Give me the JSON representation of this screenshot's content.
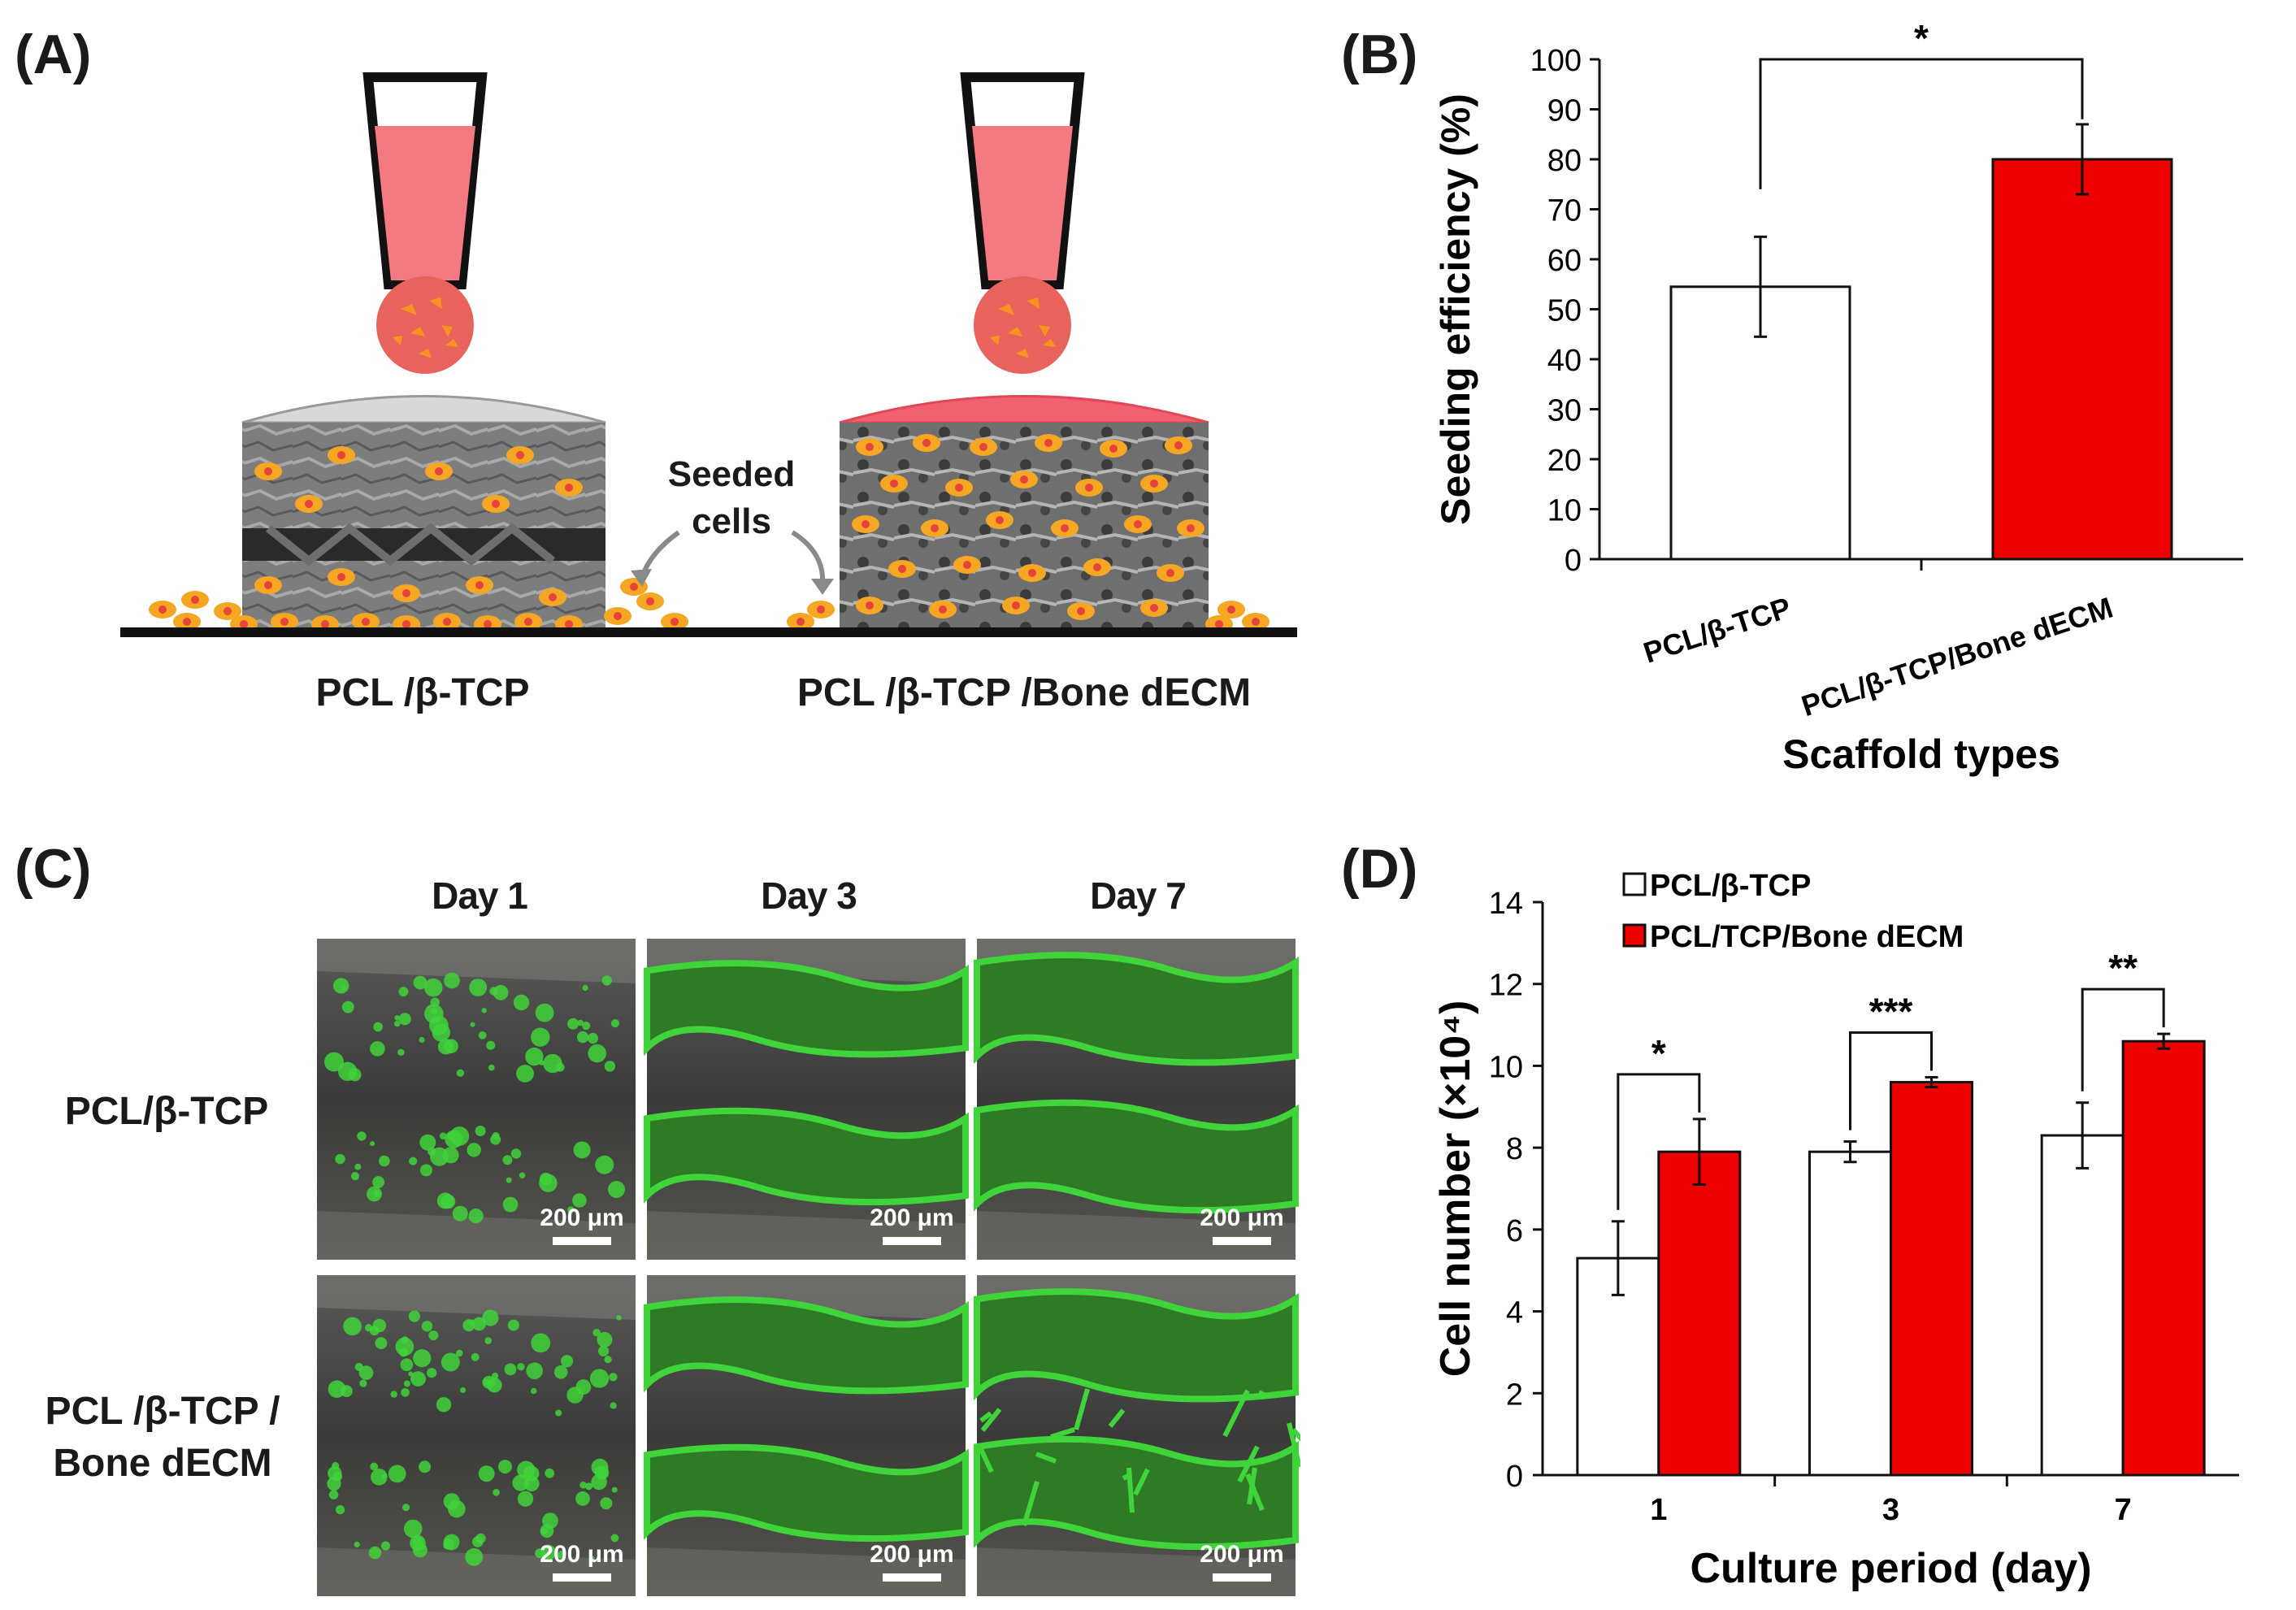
{
  "panel_a": {
    "label": "(A)",
    "seeded_cells_line1": "Seeded",
    "seeded_cells_line2": "cells",
    "left_caption": "PCL /β-TCP",
    "right_caption": "PCL /β-TCP /Bone dECM",
    "colors": {
      "medium": "#f47a82",
      "cell_drop": "#e8635b",
      "cell": "#f7931e",
      "ecm_cap": "#f06070",
      "pcl_cap": "#d8d8d8"
    }
  },
  "panel_b": {
    "label": "(B)",
    "significance": "*"
  },
  "panel_c": {
    "label": "(C)",
    "col_headers": [
      "Day 1",
      "Day 3",
      "Day 7"
    ],
    "row_labels": [
      [
        "PCL/β-TCP"
      ],
      [
        "PCL /β-TCP /",
        "Bone dECM"
      ]
    ],
    "scale_bar": "200 μm",
    "colors": {
      "fluorescence": "#3fd43a"
    }
  },
  "panel_d": {
    "label": "(D)",
    "legend": [
      "PCL/β-TCP",
      "PCL/TCP/Bone dECM"
    ],
    "significance": [
      "*",
      "***",
      "**"
    ]
  },
  "chart_data": [
    {
      "type": "bar",
      "panel": "B",
      "categories": [
        "PCL/β-TCP",
        "PCL/β-TCP/Bone dECM"
      ],
      "values": [
        54.5,
        80
      ],
      "errors": [
        10,
        7
      ],
      "colors": [
        "#ffffff",
        "#ee0000"
      ],
      "xlabel": "Scaffold types",
      "ylabel": "Seeding efficiency (%)",
      "ylim": [
        0,
        100
      ],
      "yticks": [
        0,
        10,
        20,
        30,
        40,
        50,
        60,
        70,
        80,
        90,
        100
      ],
      "grid": false
    },
    {
      "type": "bar",
      "panel": "D",
      "categories": [
        "1",
        "3",
        "7"
      ],
      "series": [
        {
          "name": "PCL/β-TCP",
          "values": [
            5.3,
            7.9,
            8.3
          ],
          "errors": [
            0.9,
            0.25,
            0.8
          ],
          "color": "#ffffff"
        },
        {
          "name": "PCL/TCP/Bone dECM",
          "values": [
            7.9,
            9.6,
            10.6
          ],
          "errors": [
            0.8,
            0.12,
            0.18
          ],
          "color": "#ee0000"
        }
      ],
      "xlabel": "Culture period (day)",
      "ylabel": "Cell number (×10⁴)",
      "ylim": [
        0,
        14
      ],
      "yticks": [
        0,
        2,
        4,
        6,
        8,
        10,
        12,
        14
      ],
      "legend_position": "top-left",
      "grid": false
    }
  ]
}
